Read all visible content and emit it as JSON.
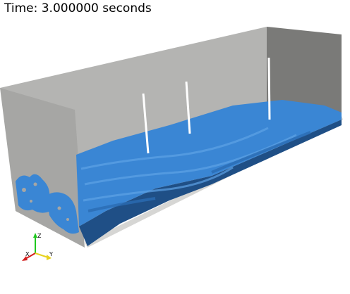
{
  "annotation": {
    "time_text": "Time: 3.000000 seconds"
  },
  "orientation_axes": {
    "x_label": "X",
    "y_label": "Y",
    "z_label": "Z",
    "x_color": "#d21e1e",
    "y_color": "#e8d21e",
    "z_color": "#1ec81e"
  },
  "scene": {
    "background_color": "#ffffff",
    "tank_wall_color": "#a5a5a3",
    "tank_back_wall_color": "#b4b4b2",
    "tank_end_wall_color": "#7a7a78",
    "fluid_color": "#3a86d4",
    "fluid_dark_color": "#1f4f86",
    "probe_color": "#ffffff"
  }
}
